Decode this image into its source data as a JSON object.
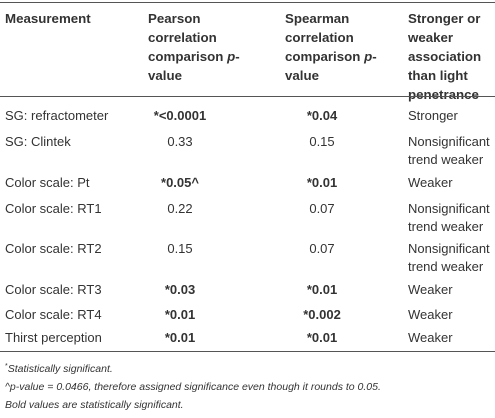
{
  "headers": {
    "measurement": "Measurement",
    "pearson": "Pearson correlation comparison",
    "pearson_p": "p",
    "pearson_suffix": "-value",
    "spearman": "Spearman correlation comparison",
    "spearman_p": "p",
    "spearman_suffix": "-value",
    "association": "Stronger or weaker association than light penetrance"
  },
  "rows": [
    {
      "measurement": "SG: refractometer",
      "pearson": "*<0.0001",
      "spearman": "*0.04",
      "association_line1": "Stronger",
      "association_line2": ""
    },
    {
      "measurement": "SG: Clintek",
      "pearson": "0.33",
      "spearman": "0.15",
      "association_line1": "Nonsignificant",
      "association_line2": "trend weaker"
    },
    {
      "measurement": "Color scale: Pt",
      "pearson": "*0.05^",
      "spearman": "*0.01",
      "association_line1": "Weaker",
      "association_line2": ""
    },
    {
      "measurement": "Color scale: RT1",
      "pearson": "0.22",
      "spearman": "0.07",
      "association_line1": "Nonsignificant",
      "association_line2": "trend weaker"
    },
    {
      "measurement": "Color scale: RT2",
      "pearson": "0.15",
      "spearman": "0.07",
      "association_line1": "Nonsignificant",
      "association_line2": "trend weaker"
    },
    {
      "measurement": "Color scale: RT3",
      "pearson": "*0.03",
      "spearman": "*0.01",
      "association_line1": "Weaker",
      "association_line2": ""
    },
    {
      "measurement": "Color scale: RT4",
      "pearson": "*0.01",
      "spearman": "*0.002",
      "association_line1": "Weaker",
      "association_line2": ""
    },
    {
      "measurement": "Thirst perception",
      "pearson": "*0.01",
      "spearman": "*0.01",
      "association_line1": "Weaker",
      "association_line2": ""
    }
  ],
  "notes": {
    "note1_mark": "*",
    "note1_text": "Statistically significant.",
    "note2_text": "^p-value = 0.0466, therefore assigned significance even though it rounds to 0.05.",
    "note3_text": "Bold values are statistically significant."
  }
}
